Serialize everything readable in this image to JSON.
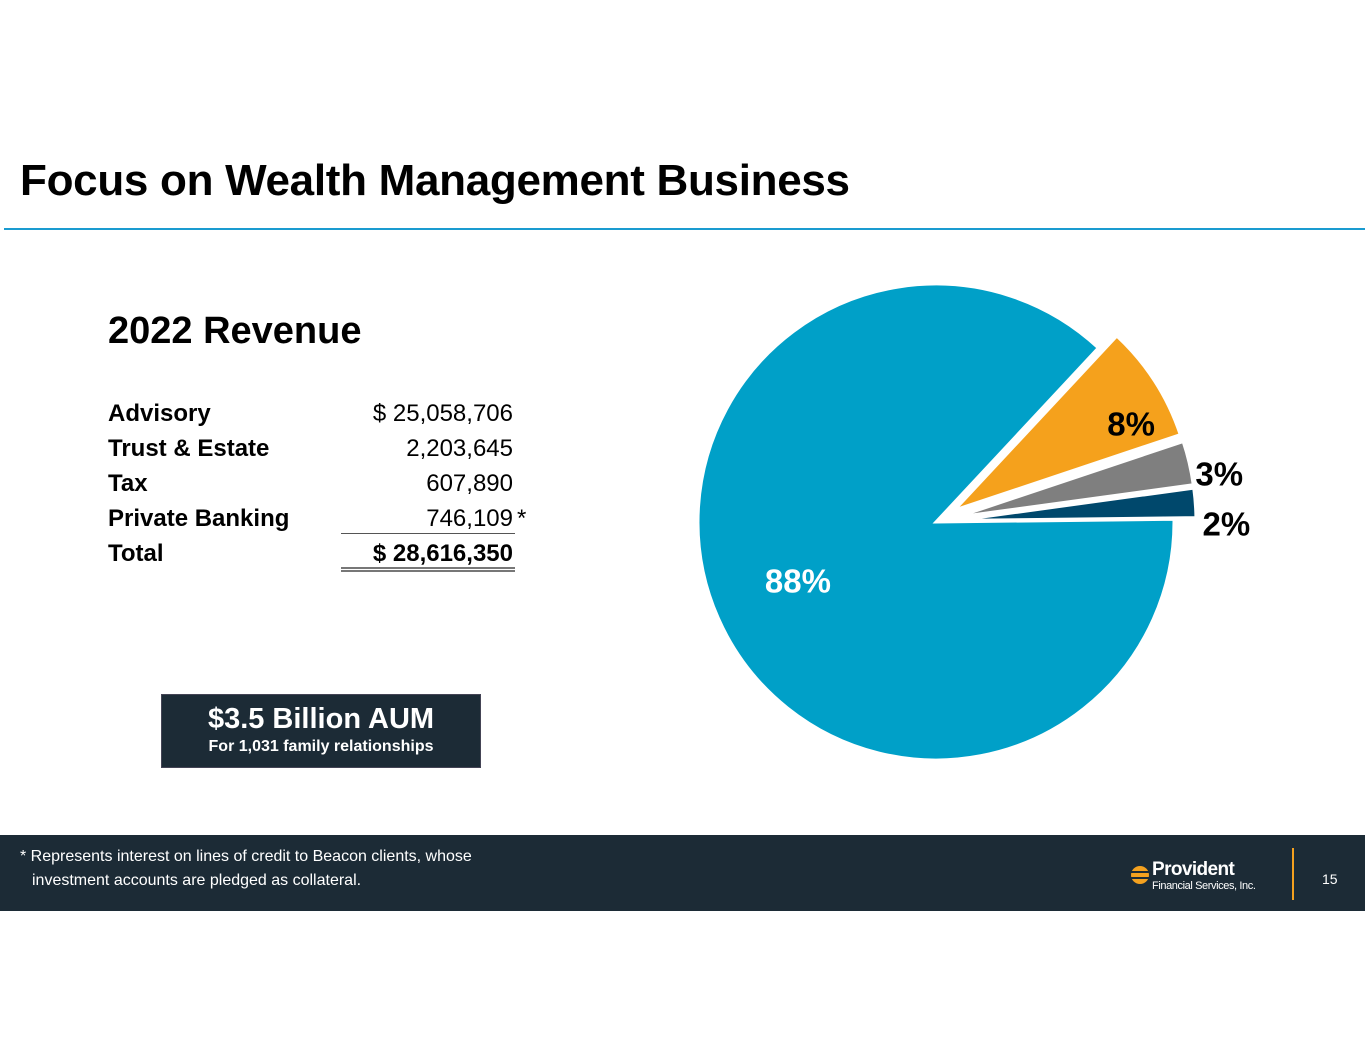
{
  "slide": {
    "title": "Focus on Wealth Management Business",
    "page_number": "15"
  },
  "revenue": {
    "heading": "2022 Revenue",
    "rows": [
      {
        "label": "Advisory",
        "value": "$ 25,058,706",
        "note": ""
      },
      {
        "label": "Trust & Estate",
        "value": "2,203,645",
        "note": ""
      },
      {
        "label": "Tax",
        "value": "607,890",
        "note": ""
      },
      {
        "label": "Private Banking",
        "value": "746,109",
        "note": "*"
      },
      {
        "label": "Total",
        "value": "$  28,616,350",
        "note": ""
      }
    ]
  },
  "aum": {
    "headline": "$3.5 Billion AUM",
    "subline": "For 1,031 family relationships"
  },
  "footer": {
    "footnote_line1": "* Represents interest on lines of credit to Beacon clients, whose",
    "footnote_line2": "investment accounts are pledged as collateral.",
    "logo_name": "Provident",
    "logo_sub": "Financial Services, Inc.",
    "logo_icon": "provident-logo-icon"
  },
  "chart_data": {
    "type": "pie",
    "title": "",
    "slices": [
      {
        "value": 88,
        "label": "88%",
        "color": "#00a0c8",
        "explode": false,
        "label_color": "#ffffff"
      },
      {
        "value": 8,
        "label": "8%",
        "color": "#f5a11c",
        "explode": true,
        "label_color": "#000000"
      },
      {
        "value": 3,
        "label": "3%",
        "color": "#7f7f7f",
        "explode": true,
        "label_color": "#000000"
      },
      {
        "value": 2,
        "label": "2%",
        "color": "#00486c",
        "explode": true,
        "label_color": "#000000"
      }
    ]
  },
  "colors": {
    "accent": "#1a9bd0",
    "dark": "#1c2b36",
    "orange": "#f4a11f"
  }
}
